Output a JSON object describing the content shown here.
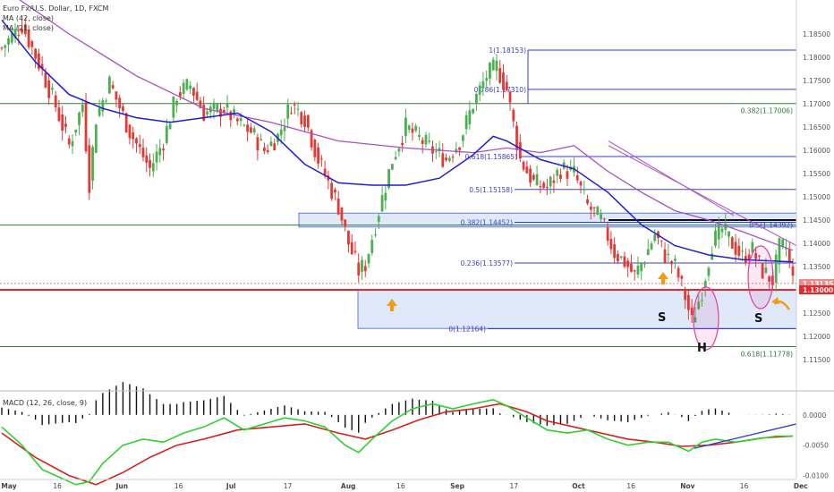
{
  "header": {
    "title": "Euro Fx/U.S. Dollar, 1D, FXCM",
    "ma1": "MA (42, close)",
    "ma2": "MA (21, close)",
    "macd": "MACD (12, 26, close, 9)"
  },
  "colors": {
    "bull": "#4caf50",
    "bear": "#e53935",
    "ma42": "#a94fc4",
    "ma21": "#1f1fd0",
    "fib": "#3a3ad8",
    "green_level": "#2e7d32",
    "support": "#e8262b",
    "zone": "#dfe9f9",
    "macd_line": "#2ed12e",
    "signal_line": "#d81f1f",
    "ellipse": "#e040a0",
    "arrow": "#f39c12",
    "axis_text": "#555555"
  },
  "chart_data": [
    {
      "type": "candlestick",
      "title": "Euro Fx/U.S. Dollar, 1D, FXCM",
      "ylim": [
        1.11,
        1.19
      ],
      "x_ticks": [
        "May",
        "16",
        "Jun",
        "16",
        "Jul",
        "17",
        "Aug",
        "16",
        "Sep",
        "17",
        "Oct",
        "16",
        "Nov",
        "16",
        "Dec"
      ],
      "y_ticks": [
        "1.18500",
        "1.18000",
        "1.17500",
        "1.17000",
        "1.16500",
        "1.16000",
        "1.15500",
        "1.15000",
        "1.14500",
        "1.14000",
        "1.13500",
        "1.13000",
        "1.12500",
        "1.12000",
        "1.11500"
      ],
      "price_labels": [
        {
          "text": "1.13135",
          "value": 1.13135
        },
        {
          "text": "1.13000",
          "value": 1.13
        }
      ],
      "close_path": [
        [
          0,
          1.182
        ],
        [
          6,
          1.187
        ],
        [
          12,
          1.177
        ],
        [
          16,
          1.1695
        ],
        [
          20,
          1.161
        ],
        [
          24,
          1.17
        ],
        [
          26,
          1.153
        ],
        [
          28,
          1.167
        ],
        [
          32,
          1.1745
        ],
        [
          38,
          1.164
        ],
        [
          44,
          1.156
        ],
        [
          48,
          1.162
        ],
        [
          52,
          1.172
        ],
        [
          56,
          1.174
        ],
        [
          60,
          1.168
        ],
        [
          66,
          1.169
        ],
        [
          70,
          1.166
        ],
        [
          74,
          1.164
        ],
        [
          78,
          1.16
        ],
        [
          82,
          1.163
        ],
        [
          86,
          1.17
        ],
        [
          90,
          1.167
        ],
        [
          94,
          1.158
        ],
        [
          100,
          1.148
        ],
        [
          103,
          1.14
        ],
        [
          106,
          1.134
        ],
        [
          108,
          1.1355
        ],
        [
          112,
          1.147
        ],
        [
          116,
          1.158
        ],
        [
          120,
          1.165
        ],
        [
          124,
          1.1625
        ],
        [
          128,
          1.16
        ],
        [
          132,
          1.158
        ],
        [
          136,
          1.162
        ],
        [
          140,
          1.17
        ],
        [
          144,
          1.176
        ],
        [
          147,
          1.178
        ],
        [
          150,
          1.173
        ],
        [
          154,
          1.158
        ],
        [
          158,
          1.153
        ],
        [
          162,
          1.152
        ],
        [
          166,
          1.156
        ],
        [
          170,
          1.155
        ],
        [
          174,
          1.148
        ],
        [
          178,
          1.145
        ],
        [
          182,
          1.138
        ],
        [
          185,
          1.136
        ],
        [
          188,
          1.133
        ],
        [
          191,
          1.137
        ],
        [
          194,
          1.142
        ],
        [
          197,
          1.1375
        ],
        [
          200,
          1.135
        ],
        [
          203,
          1.1285
        ],
        [
          205,
          1.123
        ],
        [
          208,
          1.13
        ],
        [
          211,
          1.14
        ],
        [
          214,
          1.143
        ],
        [
          217,
          1.14
        ],
        [
          220,
          1.137
        ],
        [
          223,
          1.1385
        ],
        [
          226,
          1.134
        ],
        [
          229,
          1.132
        ],
        [
          231,
          1.139
        ],
        [
          233,
          1.139
        ],
        [
          235,
          1.132
        ]
      ],
      "ma42_path": [
        [
          0,
          1.195
        ],
        [
          20,
          1.185
        ],
        [
          40,
          1.176
        ],
        [
          60,
          1.169
        ],
        [
          80,
          1.166
        ],
        [
          100,
          1.162
        ],
        [
          120,
          1.1605
        ],
        [
          140,
          1.1595
        ],
        [
          150,
          1.1605
        ],
        [
          160,
          1.1595
        ],
        [
          170,
          1.161
        ],
        [
          180,
          1.1555
        ],
        [
          190,
          1.151
        ],
        [
          200,
          1.147
        ],
        [
          210,
          1.145
        ],
        [
          220,
          1.1425
        ],
        [
          235,
          1.1385
        ]
      ],
      "ma21_path": [
        [
          0,
          1.188
        ],
        [
          10,
          1.179
        ],
        [
          20,
          1.172
        ],
        [
          30,
          1.169
        ],
        [
          40,
          1.167
        ],
        [
          50,
          1.166
        ],
        [
          60,
          1.167
        ],
        [
          70,
          1.168
        ],
        [
          80,
          1.164
        ],
        [
          90,
          1.157
        ],
        [
          100,
          1.153
        ],
        [
          110,
          1.1525
        ],
        [
          120,
          1.1525
        ],
        [
          130,
          1.154
        ],
        [
          140,
          1.159
        ],
        [
          146,
          1.163
        ],
        [
          150,
          1.162
        ],
        [
          160,
          1.158
        ],
        [
          170,
          1.156
        ],
        [
          180,
          1.151
        ],
        [
          190,
          1.144
        ],
        [
          200,
          1.1395
        ],
        [
          210,
          1.1375
        ],
        [
          220,
          1.1365
        ],
        [
          235,
          1.136
        ]
      ],
      "fibonacci": [
        {
          "label": "1(1.18153)",
          "value": 1.18153
        },
        {
          "label": "0.786(1.17310)",
          "value": 1.1731
        },
        {
          "label": "0.618(1.15865)",
          "value": 1.15865
        },
        {
          "label": "0.5(1.15158)",
          "value": 1.15158
        },
        {
          "label": "0.382(1.14452)",
          "value": 1.14452
        },
        {
          "label": "0.236(1.13577)",
          "value": 1.13577
        },
        {
          "label": "0(1.12164)",
          "value": 1.12164
        }
      ],
      "fib_extra": [
        {
          "label": "0.5(1.14392)",
          "value": 1.14392
        }
      ],
      "green_levels": [
        {
          "label": "0.382(1.17006)",
          "value": 1.17006
        },
        {
          "label": "",
          "value": 1.14392
        },
        {
          "label": "0.618(1.11778)",
          "value": 1.11778
        }
      ],
      "support_level": 1.13,
      "zones": [
        {
          "from": 1.1435,
          "to": 1.1465
        },
        {
          "from": 1.1217,
          "to": 1.13
        }
      ],
      "annotations": {
        "left_shoulder": "S",
        "head": "H",
        "right_shoulder": "S"
      }
    },
    {
      "type": "macd",
      "title": "MACD (12, 26, close, 9)",
      "ylim": [
        -0.0105,
        0.0035
      ],
      "y_ticks": [
        "0.0000",
        "-0.0050",
        "-0.0100"
      ],
      "macd_path": [
        [
          0,
          -0.002
        ],
        [
          6,
          -0.005
        ],
        [
          12,
          -0.009
        ],
        [
          18,
          -0.0105
        ],
        [
          22,
          -0.0115
        ],
        [
          26,
          -0.011
        ],
        [
          30,
          -0.008
        ],
        [
          36,
          -0.005
        ],
        [
          42,
          -0.004
        ],
        [
          48,
          -0.0045
        ],
        [
          54,
          -0.003
        ],
        [
          60,
          -0.002
        ],
        [
          66,
          -0.0005
        ],
        [
          72,
          -0.0025
        ],
        [
          78,
          -0.0015
        ],
        [
          84,
          -0.0005
        ],
        [
          90,
          -0.001
        ],
        [
          96,
          -0.002
        ],
        [
          102,
          -0.005
        ],
        [
          106,
          -0.0062
        ],
        [
          110,
          -0.004
        ],
        [
          116,
          -0.001
        ],
        [
          122,
          0.001
        ],
        [
          128,
          0.0018
        ],
        [
          134,
          0.001
        ],
        [
          140,
          0.0018
        ],
        [
          146,
          0.0025
        ],
        [
          150,
          0.0015
        ],
        [
          156,
          -0.0005
        ],
        [
          162,
          -0.0025
        ],
        [
          168,
          -0.003
        ],
        [
          174,
          -0.0025
        ],
        [
          180,
          -0.004
        ],
        [
          186,
          -0.005
        ],
        [
          192,
          -0.0045
        ],
        [
          198,
          -0.0045
        ],
        [
          204,
          -0.006
        ],
        [
          208,
          -0.0045
        ],
        [
          212,
          -0.004
        ],
        [
          218,
          -0.0045
        ],
        [
          224,
          -0.004
        ],
        [
          230,
          -0.0035
        ],
        [
          235,
          -0.0035
        ]
      ],
      "signal_path": [
        [
          0,
          -0.003
        ],
        [
          10,
          -0.007
        ],
        [
          20,
          -0.01
        ],
        [
          28,
          -0.0115
        ],
        [
          36,
          -0.0095
        ],
        [
          44,
          -0.007
        ],
        [
          52,
          -0.005
        ],
        [
          60,
          -0.004
        ],
        [
          70,
          -0.0025
        ],
        [
          80,
          -0.002
        ],
        [
          90,
          -0.0015
        ],
        [
          100,
          -0.003
        ],
        [
          108,
          -0.004
        ],
        [
          116,
          -0.0025
        ],
        [
          124,
          -0.0008
        ],
        [
          132,
          0.0005
        ],
        [
          140,
          0.001
        ],
        [
          148,
          0.0018
        ],
        [
          156,
          0.0005
        ],
        [
          162,
          -0.001
        ],
        [
          170,
          -0.002
        ],
        [
          178,
          -0.003
        ],
        [
          186,
          -0.004
        ],
        [
          194,
          -0.0045
        ],
        [
          202,
          -0.0052
        ],
        [
          210,
          -0.005
        ],
        [
          218,
          -0.0045
        ],
        [
          226,
          -0.0038
        ],
        [
          235,
          -0.0035
        ]
      ]
    }
  ]
}
